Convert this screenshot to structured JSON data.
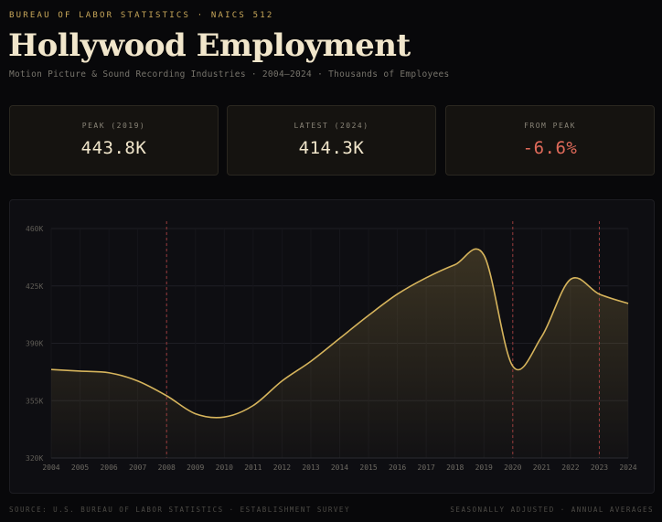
{
  "header": {
    "kicker": "BUREAU OF LABOR STATISTICS · NAICS 512",
    "title": "Hollywood Employment",
    "subtitle": "Motion Picture & Sound Recording Industries · 2004–2024 · Thousands of Employees"
  },
  "stats": [
    {
      "label": "PEAK (2019)",
      "value": "443.8K"
    },
    {
      "label": "LATEST (2024)",
      "value": "414.3K"
    },
    {
      "label": "FROM PEAK",
      "value": "-6.6%"
    }
  ],
  "colors": {
    "accent": "#c9a85a",
    "line": "#d6b45c",
    "negative": "#e06a5a",
    "event": "#9a3c3c"
  },
  "chart_data": {
    "type": "area",
    "x": [
      2004,
      2005,
      2006,
      2007,
      2008,
      2009,
      2010,
      2011,
      2012,
      2013,
      2014,
      2015,
      2016,
      2017,
      2018,
      2019,
      2020,
      2021,
      2022,
      2023,
      2024
    ],
    "series": [
      {
        "values": [
          374,
          373,
          372,
          367,
          358,
          347,
          345,
          352,
          367,
          379,
          393,
          407,
          420,
          430,
          438,
          443.8,
          376,
          394,
          429,
          420,
          414.3
        ]
      }
    ],
    "ylim": [
      320,
      460
    ],
    "yticks": [
      320,
      355,
      390,
      425,
      460
    ],
    "ytick_labels": [
      "320K",
      "355K",
      "390K",
      "425K",
      "460K"
    ],
    "xlabel": "",
    "ylabel": "",
    "grid": true,
    "events": [
      {
        "x": 2008
      },
      {
        "x": 2020
      },
      {
        "x": 2023
      }
    ]
  },
  "footer": {
    "left": "SOURCE: U.S. BUREAU OF LABOR STATISTICS · ESTABLISHMENT SURVEY",
    "right": "SEASONALLY ADJUSTED · ANNUAL AVERAGES"
  }
}
